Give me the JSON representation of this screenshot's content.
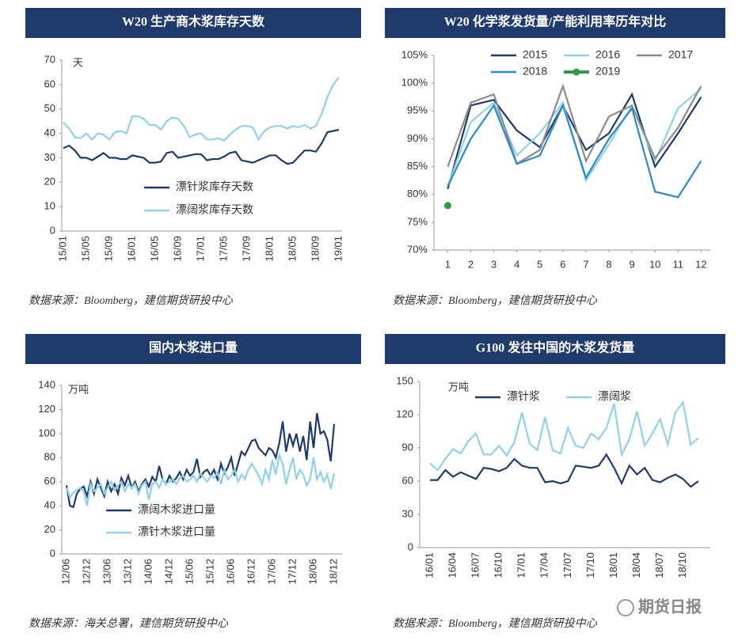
{
  "chart_data": [
    {
      "type": "line",
      "title": "W20 生产商木浆库存天数",
      "unit": "天",
      "note": "数据来源：Bloomberg，建信期货研投中心",
      "legend": "lower left",
      "categories": [
        "15/01",
        null,
        null,
        null,
        "15/05",
        null,
        null,
        null,
        "15/09",
        null,
        null,
        null,
        "16/01",
        null,
        null,
        null,
        "16/05",
        null,
        null,
        null,
        "16/09",
        null,
        null,
        null,
        "17/01",
        null,
        null,
        null,
        "17/05",
        null,
        null,
        null,
        "17/09",
        null,
        null,
        null,
        "18/01",
        null,
        null,
        null,
        "18/05",
        null,
        null,
        null,
        "18/09",
        null,
        null,
        null,
        "19/01"
      ],
      "series": [
        {
          "name": "漂针浆库存天数",
          "color": "#1f3b6b",
          "values": [
            34,
            35,
            33,
            30,
            30,
            29,
            30.5,
            32,
            30,
            30,
            29.5,
            29.5,
            31,
            30.5,
            30,
            28,
            28,
            28.5,
            32,
            32.5,
            30,
            30.5,
            31,
            31.5,
            31.5,
            29,
            29.5,
            29.5,
            30.5,
            32,
            32.5,
            29,
            28.5,
            28,
            29,
            30,
            31,
            31,
            29,
            27.5,
            28,
            30.5,
            33,
            33,
            32.5,
            36,
            40.5,
            41,
            41.5
          ]
        },
        {
          "name": "漂阔浆库存天数",
          "color": "#8fd1ec",
          "values": [
            44.5,
            42,
            38.5,
            38,
            40,
            37.5,
            40,
            39.5,
            37.5,
            40.5,
            41,
            40,
            47,
            47,
            46,
            43.5,
            43.5,
            41.5,
            45,
            46.5,
            46,
            43,
            38.5,
            39.5,
            40,
            37.5,
            37.5,
            38,
            37,
            39.5,
            41.5,
            43,
            43,
            42.5,
            37.5,
            41,
            42.5,
            43,
            43,
            42,
            43,
            42.5,
            43.5,
            42,
            43,
            48,
            55,
            60,
            63
          ]
        }
      ],
      "ylim": [
        0,
        70
      ],
      "yticks": [
        0,
        10,
        20,
        30,
        40,
        50,
        60,
        70
      ]
    },
    {
      "type": "line",
      "title": "W20 化学浆发货量/产能利用率历年对比",
      "note": "数据来源：Bloomberg，建信期货研投中心",
      "legend": "top",
      "x": [
        1,
        2,
        3,
        4,
        5,
        6,
        7,
        8,
        9,
        10,
        11,
        12
      ],
      "xlim": [
        0.4,
        12.4
      ],
      "xticks": [
        1,
        2,
        3,
        4,
        5,
        6,
        7,
        8,
        9,
        10,
        11,
        12
      ],
      "series": [
        {
          "name": "2015",
          "color": "#1f3b6b",
          "values": [
            81,
            96,
            97,
            91.5,
            88.5,
            96,
            88,
            91,
            98,
            85,
            91,
            97.5
          ]
        },
        {
          "name": "2016",
          "color": "#8fd1ec",
          "values": [
            81.5,
            93,
            96.5,
            87,
            91,
            96.5,
            82.5,
            89,
            96,
            86,
            95.5,
            99
          ]
        },
        {
          "name": "2017",
          "color": "#8c8c8c",
          "values": [
            85,
            96.5,
            98,
            85.5,
            88,
            99.5,
            86,
            94,
            96,
            86.5,
            92,
            99.5
          ]
        },
        {
          "name": "2018",
          "color": "#2a8bc8",
          "values": [
            81.5,
            90,
            96,
            85.5,
            87,
            96,
            83,
            90,
            95.5,
            80.5,
            79.5,
            86
          ]
        },
        {
          "name": "2019",
          "color": "#2e9a48",
          "marker": "circle",
          "values": [
            78,
            null,
            null,
            null,
            null,
            null,
            null,
            null,
            null,
            null,
            null,
            null
          ]
        }
      ],
      "ylim": [
        70,
        105
      ],
      "yticks": [
        {
          "value": 70,
          "label": "70%"
        },
        {
          "value": 75,
          "label": "75%"
        },
        {
          "value": 80,
          "label": "80%"
        },
        {
          "value": 85,
          "label": "85%"
        },
        {
          "value": 90,
          "label": "90%"
        },
        {
          "value": 95,
          "label": "95%"
        },
        {
          "value": 100,
          "label": "100%"
        },
        {
          "value": 105,
          "label": "105%"
        }
      ]
    },
    {
      "type": "line",
      "title": "国内木浆进口量",
      "unit": "万吨",
      "note": "数据来源：海关总署，建信期货研投中心",
      "legend": "lower left",
      "categories": [
        "12/06",
        null,
        null,
        null,
        null,
        null,
        "12/12",
        null,
        null,
        null,
        null,
        null,
        "13/06",
        null,
        null,
        null,
        null,
        null,
        "13/12",
        null,
        null,
        null,
        null,
        null,
        "14/06",
        null,
        null,
        null,
        null,
        null,
        "14/12",
        null,
        null,
        null,
        null,
        null,
        "15/06",
        null,
        null,
        null,
        null,
        null,
        "15/12",
        null,
        null,
        null,
        null,
        null,
        "16/06",
        null,
        null,
        null,
        null,
        null,
        "16/12",
        null,
        null,
        null,
        null,
        null,
        "17/06",
        null,
        null,
        null,
        null,
        null,
        "17/12",
        null,
        null,
        null,
        null,
        null,
        "18/06",
        null,
        null,
        null,
        null,
        null,
        "18/12"
      ],
      "series": [
        {
          "name": "漂阔木浆进口量",
          "color": "#1f3b6b",
          "values": [
            57,
            40,
            39,
            50,
            54,
            56,
            48,
            60,
            50,
            62,
            55,
            48,
            60,
            52,
            58,
            50,
            63,
            57,
            65,
            55,
            60,
            52,
            58,
            62,
            56,
            64,
            60,
            73,
            62,
            58,
            65,
            60,
            63,
            68,
            62,
            70,
            65,
            68,
            79,
            64,
            68,
            70,
            65,
            70,
            62,
            75,
            67,
            72,
            80,
            65,
            75,
            85,
            82,
            88,
            94,
            95,
            88,
            85,
            82,
            88,
            86,
            80,
            92,
            110,
            85,
            100,
            90,
            100,
            85,
            98,
            78,
            110,
            88,
            117,
            100,
            102,
            95,
            77,
            108
          ]
        },
        {
          "name": "漂针木浆进口量",
          "color": "#8fd1ec",
          "values": [
            55,
            47,
            51,
            53,
            55,
            52,
            40,
            58,
            52,
            55,
            58,
            50,
            55,
            60,
            53,
            57,
            60,
            52,
            58,
            55,
            58,
            50,
            57,
            60,
            45,
            58,
            60,
            55,
            62,
            58,
            60,
            62,
            58,
            63,
            65,
            60,
            62,
            65,
            60,
            67,
            63,
            60,
            65,
            63,
            68,
            58,
            70,
            62,
            65,
            70,
            60,
            66,
            62,
            70,
            75,
            70,
            65,
            58,
            70,
            62,
            78,
            66,
            82,
            75,
            58,
            70,
            80,
            62,
            70,
            66,
            57,
            62,
            80,
            62,
            68,
            60,
            66,
            54,
            67
          ]
        }
      ],
      "ylim": [
        0,
        140
      ],
      "yticks": [
        0,
        20,
        40,
        60,
        80,
        100,
        120,
        140
      ]
    },
    {
      "type": "line",
      "title": "G100 发往中国的木浆发货量",
      "unit": "万吨",
      "note": "数据来源：Bloomberg，建信期货研投中心",
      "legend": "top",
      "categories": [
        "16/01",
        null,
        null,
        "16/04",
        null,
        null,
        "16/07",
        null,
        null,
        "16/10",
        null,
        null,
        "17/01",
        null,
        null,
        "17/04",
        null,
        null,
        "17/07",
        null,
        null,
        "17/10",
        null,
        null,
        "18/01",
        null,
        null,
        "18/04",
        null,
        null,
        "18/07",
        null,
        null,
        "18/10",
        null,
        null
      ],
      "series": [
        {
          "name": "漂针浆",
          "color": "#1f3b6b",
          "values": [
            61,
            61,
            70,
            64,
            68,
            65,
            62,
            72,
            71,
            69,
            72,
            80,
            74,
            72,
            72,
            59,
            60,
            58,
            60,
            74,
            73,
            72,
            74,
            84,
            72,
            58,
            74,
            66,
            72,
            61,
            59,
            63,
            66,
            62,
            55,
            60
          ]
        },
        {
          "name": "漂阔浆",
          "color": "#8fd1ec",
          "values": [
            76,
            70,
            80,
            89,
            85,
            96,
            103,
            84,
            84,
            92,
            83,
            95,
            122,
            94,
            88,
            118,
            88,
            85,
            108,
            92,
            90,
            103,
            98,
            108,
            130,
            84,
            98,
            123,
            92,
            103,
            116,
            93,
            122,
            131,
            93,
            99
          ]
        }
      ],
      "ylim": [
        0,
        150
      ],
      "yticks": [
        0,
        30,
        60,
        90,
        120,
        150
      ]
    }
  ],
  "watermark": "期货日报"
}
